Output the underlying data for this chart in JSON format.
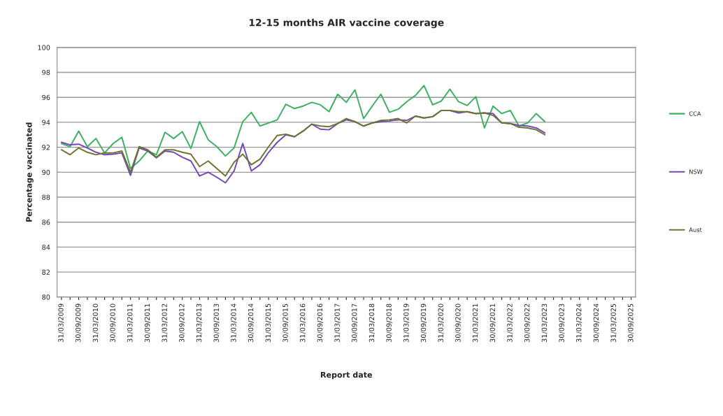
{
  "chart_data": {
    "type": "line",
    "title": "12-15 months AIR vaccine coverage",
    "xlabel": "Report date",
    "ylabel": "Percentage vaccinated",
    "categories": [
      "31/03/2009",
      null,
      "30/09/2009",
      null,
      "31/03/2010",
      null,
      "30/09/2010",
      null,
      "31/03/2011",
      null,
      "30/09/2011",
      null,
      "31/03/2012",
      null,
      "30/09/2012",
      null,
      "31/03/2013",
      null,
      "30/09/2013",
      null,
      "31/03/2014",
      null,
      "30/09/2014",
      null,
      "31/03/2015",
      null,
      "30/09/2015",
      null,
      "31/03/2016",
      null,
      "30/09/2016",
      null,
      "31/03/2017",
      null,
      "30/09/2017",
      null,
      "31/03/2018",
      null,
      "30/09/2018",
      null,
      "31/03/2019",
      null,
      "30/09/2019",
      null,
      "31/03/2020",
      null,
      "30/09/2020",
      null,
      "31/03/2021",
      null,
      "30/09/2021",
      null,
      "31/03/2022",
      null,
      "30/09/2022",
      null,
      "31/03/2023",
      null,
      "30/09/2023",
      null,
      "31/03/2024",
      null,
      "30/09/2024",
      null,
      "31/03/2025",
      null,
      "30/09/2025"
    ],
    "series": [
      {
        "name": "CCA",
        "color": "#3cb062",
        "values": [
          92.3,
          92.05,
          93.3,
          92.05,
          92.7,
          91.55,
          92.3,
          92.8,
          90.3,
          90.9,
          91.7,
          91.4,
          93.2,
          92.7,
          93.25,
          91.9,
          94.05,
          92.6,
          92.05,
          91.3,
          91.95,
          94.05,
          94.8,
          93.7,
          93.95,
          94.2,
          95.45,
          95.1,
          95.3,
          95.6,
          95.4,
          94.85,
          96.25,
          95.6,
          96.6,
          94.3,
          95.3,
          96.25,
          94.8,
          95.05,
          95.65,
          96.15,
          96.95,
          95.4,
          95.7,
          96.65,
          95.65,
          95.35,
          96.05,
          93.55,
          95.3,
          94.7,
          94.95,
          93.7,
          93.95,
          94.7,
          94.05,
          null,
          null,
          null,
          null,
          null,
          null,
          null,
          null,
          null,
          null
        ]
      },
      {
        "name": "NSW",
        "color": "#7446b8",
        "values": [
          92.4,
          92.2,
          92.25,
          91.95,
          91.6,
          91.4,
          91.45,
          91.55,
          89.75,
          91.95,
          91.7,
          91.15,
          91.7,
          91.6,
          91.2,
          90.9,
          89.7,
          90.0,
          89.6,
          89.15,
          90.1,
          92.3,
          90.1,
          90.6,
          91.6,
          92.4,
          93.0,
          92.85,
          93.3,
          93.85,
          93.45,
          93.4,
          93.9,
          94.2,
          94.05,
          93.7,
          93.95,
          94.05,
          94.1,
          94.2,
          94.15,
          94.5,
          94.35,
          94.45,
          94.95,
          94.95,
          94.75,
          94.85,
          94.7,
          94.75,
          94.7,
          93.95,
          93.9,
          93.75,
          93.7,
          93.55,
          93.15,
          null,
          null,
          null,
          null,
          null,
          null,
          null,
          null,
          null,
          null
        ]
      },
      {
        "name": "Aust",
        "color": "#6b7530",
        "values": [
          91.8,
          91.4,
          91.95,
          91.6,
          91.4,
          91.55,
          91.55,
          91.7,
          90.0,
          92.05,
          91.8,
          91.2,
          91.8,
          91.8,
          91.6,
          91.45,
          90.45,
          90.9,
          90.3,
          89.7,
          90.8,
          91.45,
          90.6,
          91.05,
          92.05,
          92.95,
          93.05,
          92.85,
          93.3,
          93.85,
          93.7,
          93.65,
          93.9,
          94.3,
          94.05,
          93.7,
          93.95,
          94.15,
          94.2,
          94.3,
          93.95,
          94.5,
          94.35,
          94.45,
          94.95,
          94.95,
          94.85,
          94.85,
          94.7,
          94.75,
          94.55,
          93.95,
          93.9,
          93.6,
          93.55,
          93.4,
          93.0,
          null,
          null,
          null,
          null,
          null,
          null,
          null,
          null,
          null,
          null
        ]
      }
    ],
    "ylim": [
      80,
      100
    ],
    "yticks": [
      80,
      82,
      84,
      86,
      88,
      90,
      92,
      94,
      96,
      98,
      100
    ],
    "grid": "y",
    "legend": "right",
    "line_style": "solid"
  }
}
